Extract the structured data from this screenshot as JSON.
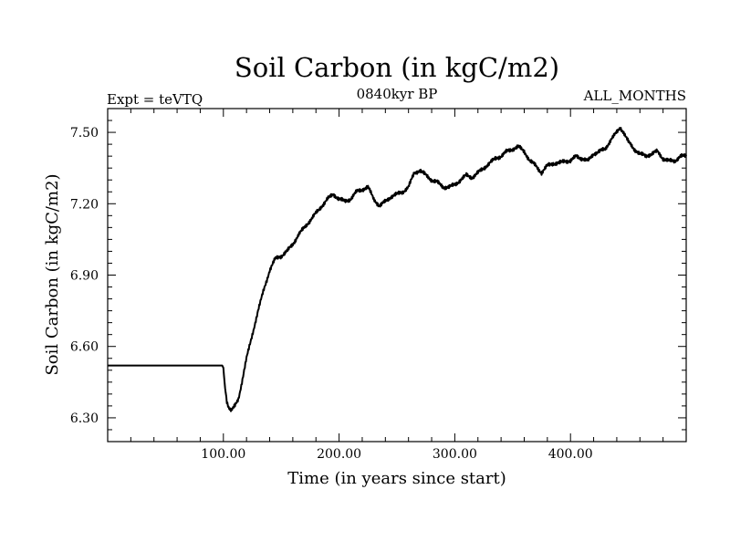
{
  "chart_data": {
    "type": "line",
    "title": "Soil Carbon (in kgC/m2)",
    "subtitle_left": "Expt = teVTQ",
    "subtitle_center": "0840kyr BP",
    "subtitle_right": "ALL_MONTHS",
    "xlabel": "Time (in years since start)",
    "ylabel": "Soil Carbon (in kgC/m2)",
    "xlim": [
      0,
      500
    ],
    "ylim": [
      6.2,
      7.6
    ],
    "xticks": [
      100,
      200,
      300,
      400
    ],
    "xtick_labels": [
      "100.00",
      "200.00",
      "300.00",
      "400.00"
    ],
    "yticks": [
      6.3,
      6.6,
      6.9,
      7.2,
      7.5
    ],
    "ytick_labels": [
      "6.30",
      "6.60",
      "6.90",
      "7.20",
      "7.50"
    ],
    "line_color": "#000000",
    "series": [
      {
        "name": "Soil Carbon",
        "x": [
          0,
          50,
          99,
          100,
          101,
          103,
          105,
          107,
          110,
          113,
          116,
          120,
          125,
          130,
          135,
          140,
          145,
          150,
          155,
          160,
          165,
          170,
          175,
          180,
          185,
          190,
          195,
          200,
          205,
          210,
          215,
          220,
          225,
          230,
          235,
          240,
          245,
          250,
          255,
          260,
          265,
          270,
          275,
          280,
          285,
          290,
          295,
          300,
          305,
          310,
          315,
          320,
          325,
          330,
          335,
          340,
          345,
          350,
          355,
          360,
          365,
          370,
          375,
          380,
          385,
          390,
          395,
          400,
          405,
          410,
          415,
          420,
          425,
          430,
          435,
          440,
          443,
          446,
          450,
          455,
          460,
          465,
          470,
          475,
          480,
          485,
          490,
          495,
          500
        ],
        "y": [
          6.52,
          6.52,
          6.52,
          6.51,
          6.45,
          6.37,
          6.34,
          6.33,
          6.35,
          6.38,
          6.45,
          6.55,
          6.65,
          6.75,
          6.84,
          6.92,
          6.97,
          6.98,
          7.0,
          7.03,
          7.07,
          7.1,
          7.13,
          7.16,
          7.19,
          7.22,
          7.24,
          7.22,
          7.21,
          7.22,
          7.25,
          7.26,
          7.27,
          7.22,
          7.19,
          7.21,
          7.23,
          7.24,
          7.25,
          7.27,
          7.33,
          7.34,
          7.32,
          7.3,
          7.29,
          7.27,
          7.27,
          7.28,
          7.3,
          7.32,
          7.31,
          7.33,
          7.35,
          7.37,
          7.39,
          7.4,
          7.42,
          7.43,
          7.44,
          7.42,
          7.38,
          7.36,
          7.33,
          7.36,
          7.37,
          7.37,
          7.38,
          7.38,
          7.4,
          7.39,
          7.38,
          7.41,
          7.42,
          7.43,
          7.47,
          7.5,
          7.52,
          7.5,
          7.46,
          7.43,
          7.41,
          7.4,
          7.41,
          7.42,
          7.39,
          7.38,
          7.38,
          7.4,
          7.4
        ]
      }
    ]
  }
}
